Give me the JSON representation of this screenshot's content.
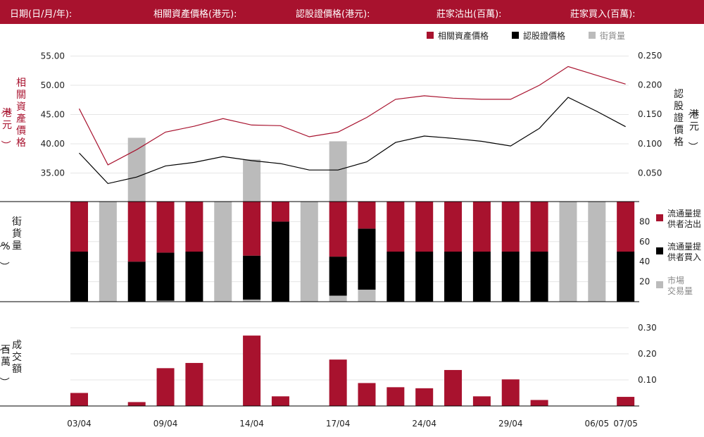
{
  "header": {
    "date_label": "日期(日/月/年):",
    "underlying_label": "相關資產價格(港元):",
    "warrant_label": "認股證價格(港元):",
    "mm_sell_label": "莊家沽出(百萬):",
    "mm_buy_label": "莊家買入(百萬):"
  },
  "colors": {
    "red": "#a8122e",
    "black": "#000000",
    "gray": "#bbbbbb"
  },
  "chart_data": [
    {
      "type": "line",
      "legend": [
        {
          "name": "相關資產價格",
          "color": "#a8122e"
        },
        {
          "name": "認股證價格",
          "color": "#000000"
        },
        {
          "name": "街貨量",
          "color": "#bbbbbb"
        }
      ],
      "ylabel_left": "相關資產價格（港元）",
      "ylabel_right": "認股證價格（港元）",
      "left_ticks": [
        "55.00",
        "50.00",
        "45.00",
        "40.00",
        "35.00"
      ],
      "left_tick_values": [
        55,
        50,
        45,
        40,
        35
      ],
      "left_ylim": [
        30,
        57.5
      ],
      "right_ticks": [
        "0.250",
        "0.200",
        "0.150",
        "0.100",
        "0.050"
      ],
      "right_tick_values": [
        0.25,
        0.2,
        0.15,
        0.1,
        0.05
      ],
      "right_ylim": [
        0.0,
        0.275
      ],
      "series": [
        {
          "name": "相關資產價格",
          "axis": "left",
          "values": [
            46.0,
            36.4,
            39.0,
            42.0,
            43.0,
            44.3,
            43.2,
            43.1,
            41.2,
            42.0,
            44.5,
            47.6,
            48.2,
            47.8,
            47.6,
            47.6,
            50.0,
            53.2,
            51.7,
            50.2
          ]
        },
        {
          "name": "認股證價格",
          "axis": "right",
          "values": [
            0.084,
            0.032,
            0.043,
            0.062,
            0.068,
            0.078,
            0.071,
            0.066,
            0.055,
            0.055,
            0.069,
            0.102,
            0.113,
            0.109,
            0.104,
            0.096,
            0.126,
            0.179,
            0.155,
            0.129
          ]
        }
      ]
    },
    {
      "type": "bar",
      "title": "街貨量",
      "unit": "%",
      "ylim": [
        0,
        100
      ],
      "ticks": [
        "80",
        "60",
        "40",
        "20"
      ],
      "tick_values": [
        80,
        60,
        40,
        20
      ],
      "legend": [
        {
          "name": "流通量提供者沽出",
          "color": "#a8122e"
        },
        {
          "name": "流通量提供者買入",
          "color": "#000000"
        },
        {
          "name": "市場交易量",
          "color": "#bbbbbb"
        }
      ],
      "stack": [
        {
          "sell": 50,
          "buy": 50,
          "market": 0
        },
        {
          "sell": 0,
          "buy": 0,
          "market": 100
        },
        {
          "sell": 60,
          "buy": 40,
          "market": 0
        },
        {
          "sell": 51,
          "buy": 48,
          "market": 1
        },
        {
          "sell": 50,
          "buy": 50,
          "market": 0
        },
        {
          "sell": 0,
          "buy": 0,
          "market": 100
        },
        {
          "sell": 54,
          "buy": 44,
          "market": 2
        },
        {
          "sell": 20,
          "buy": 80,
          "market": 0
        },
        {
          "sell": 0,
          "buy": 0,
          "market": 100
        },
        {
          "sell": 55,
          "buy": 39,
          "market": 6
        },
        {
          "sell": 27,
          "buy": 61,
          "market": 12
        },
        {
          "sell": 50,
          "buy": 50,
          "market": 0
        },
        {
          "sell": 50,
          "buy": 50,
          "market": 0
        },
        {
          "sell": 50,
          "buy": 50,
          "market": 0
        },
        {
          "sell": 50,
          "buy": 50,
          "market": 0
        },
        {
          "sell": 50,
          "buy": 50,
          "market": 0
        },
        {
          "sell": 50,
          "buy": 50,
          "market": 0
        },
        {
          "sell": 0,
          "buy": 0,
          "market": 100
        },
        {
          "sell": 0,
          "buy": 0,
          "market": 100
        },
        {
          "sell": 50,
          "buy": 50,
          "market": 0
        }
      ],
      "outstanding": [
        null,
        null,
        0.11,
        null,
        null,
        null,
        0.073,
        null,
        null,
        0.104,
        null,
        null,
        null,
        null,
        null,
        null,
        null,
        null,
        null,
        null
      ],
      "outstanding_note": "outstanding bars plotted on the warrant-price (right) scale"
    },
    {
      "type": "bar",
      "title": "成交額",
      "unit": "百萬",
      "ylim": [
        0,
        0.3
      ],
      "ticks": [
        "0.30",
        "0.20",
        "0.10"
      ],
      "tick_values": [
        0.3,
        0.2,
        0.1
      ],
      "values": [
        0.05,
        0,
        0.015,
        0.145,
        0.165,
        0,
        0.27,
        0.037,
        0,
        0.178,
        0.088,
        0.072,
        0.068,
        0.138,
        0.037,
        0.102,
        0.023,
        0,
        0,
        0.035
      ]
    }
  ],
  "x_axis": {
    "n": 20,
    "tick_labels": [
      {
        "i": 0,
        "label": "03/04"
      },
      {
        "i": 3,
        "label": "09/04"
      },
      {
        "i": 6,
        "label": "14/04"
      },
      {
        "i": 9,
        "label": "17/04"
      },
      {
        "i": 12,
        "label": "24/04"
      },
      {
        "i": 15,
        "label": "29/04"
      },
      {
        "i": 18,
        "label": "06/05"
      },
      {
        "i": 19,
        "label": "07/05"
      }
    ]
  }
}
